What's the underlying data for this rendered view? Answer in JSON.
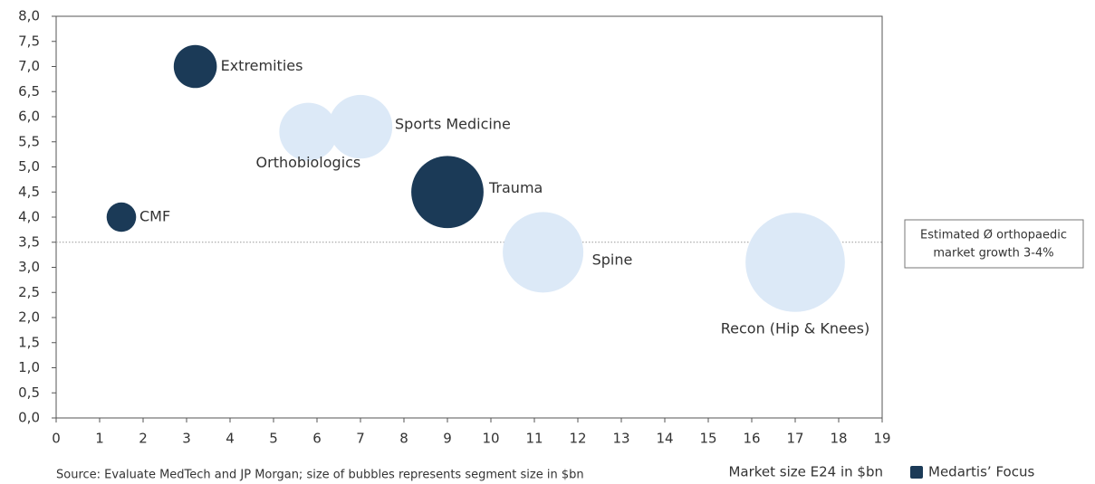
{
  "chart_data": {
    "type": "scatter",
    "x_label": "Market size E24 in $bn",
    "source": "Source: Evaluate MedTech and JP Morgan; size of bubbles represents segment size in $bn",
    "points": [
      {
        "label": "CMF",
        "x": 1.5,
        "y": 4.0,
        "color": "#1b3a57"
      },
      {
        "label": "Extremities",
        "x": 3.2,
        "y": 7.0,
        "color": "#1b3a57"
      },
      {
        "label": "Orthobiologics",
        "x": 5.8,
        "y": 5.7,
        "color": "#dce9f7"
      },
      {
        "label": "Sports Medicine",
        "x": 7.0,
        "y": 5.8,
        "color": "#dce9f7"
      },
      {
        "label": "Trauma",
        "x": 9.0,
        "y": 4.5,
        "color": "#1b3a57"
      },
      {
        "label": "Spine",
        "x": 11.2,
        "y": 3.3,
        "color": "#dce9f7"
      },
      {
        "label": "Recon (Hip & Knees)",
        "x": 17.0,
        "y": 3.1,
        "color": "#dce9f7"
      }
    ],
    "reference_line": 3.5,
    "annotation": [
      "Estimated Ø orthopaedic",
      "market growth 3-4%"
    ],
    "legend": {
      "label": "Medartis’ Focus",
      "color": "#1b3a57"
    },
    "xlim": [
      0,
      19
    ],
    "xticks": [
      0,
      1,
      2,
      3,
      4,
      5,
      6,
      7,
      8,
      9,
      10,
      11,
      12,
      13,
      14,
      15,
      16,
      17,
      18,
      19
    ],
    "ylim": [
      0,
      8
    ],
    "yticks": [
      {
        "value": 0,
        "label": "0,0"
      },
      {
        "value": 0.5,
        "label": "0,5"
      },
      {
        "value": 1,
        "label": "1,0"
      },
      {
        "value": 1.5,
        "label": "1,5"
      },
      {
        "value": 2,
        "label": "2,0"
      },
      {
        "value": 2.5,
        "label": "2,5"
      },
      {
        "value": 3,
        "label": "3,0"
      },
      {
        "value": 3.5,
        "label": "3,5"
      },
      {
        "value": 4,
        "label": "4,0"
      },
      {
        "value": 4.5,
        "label": "4,5"
      },
      {
        "value": 5,
        "label": "5,0"
      },
      {
        "value": 5.5,
        "label": "5,5"
      },
      {
        "value": 6,
        "label": "6,0"
      },
      {
        "value": 6.5,
        "label": "6,5"
      },
      {
        "value": 7,
        "label": "7,0"
      },
      {
        "value": 7.5,
        "label": "7,5"
      },
      {
        "value": 8,
        "label": "8,0"
      }
    ]
  }
}
